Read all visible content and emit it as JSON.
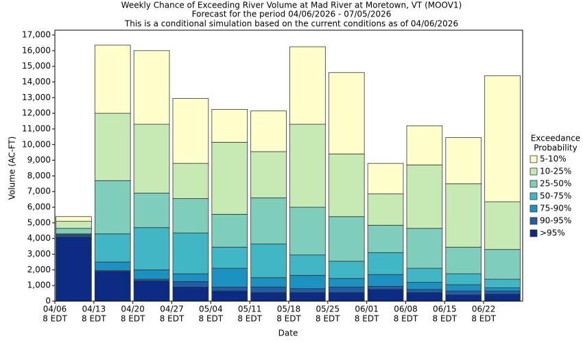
{
  "chart_data": {
    "type": "stacked_bar",
    "title": "Weekly Chance of Exceeding River Volume at Mad River at Moretown, VT (MOOV1)",
    "subtitle": "Forecast for the period 04/06/2026 - 07/05/2026",
    "note": "This is a conditional simulation based on the current conditions as of 04/06/2026",
    "x_label": "Date",
    "y_label": "Volume (AC-FT)",
    "legend_title": [
      "Exceedance",
      "Probability"
    ],
    "legend": "right",
    "categories": [
      [
        "04/06",
        "8 EDT"
      ],
      [
        "04/13",
        "8 EDT"
      ],
      [
        "04/20",
        "8 EDT"
      ],
      [
        "04/27",
        "8 EDT"
      ],
      [
        "05/04",
        "8 EDT"
      ],
      [
        "05/11",
        "8 EDT"
      ],
      [
        "05/18",
        "8 EDT"
      ],
      [
        "05/25",
        "8 EDT"
      ],
      [
        "06/01",
        "8 EDT"
      ],
      [
        "06/08",
        "8 EDT"
      ],
      [
        "06/15",
        "8 EDT"
      ],
      [
        "06/22",
        "8 EDT"
      ]
    ],
    "series": [
      {
        "name": ">95%",
        "color": "#0c2c84",
        "values": [
          4100,
          1900,
          1300,
          900,
          650,
          550,
          550,
          550,
          750,
          550,
          400,
          450
        ]
      },
      {
        "name": "90-95%",
        "color": "#225ea8",
        "values": [
          100,
          50,
          100,
          350,
          250,
          350,
          250,
          350,
          200,
          200,
          250,
          200
        ]
      },
      {
        "name": "75-90%",
        "color": "#1d91c0",
        "values": [
          50,
          550,
          600,
          500,
          1200,
          600,
          850,
          550,
          750,
          450,
          400,
          200
        ]
      },
      {
        "name": "50-75%",
        "color": "#41b6c4",
        "values": [
          50,
          1800,
          2700,
          2600,
          1350,
          2150,
          1300,
          1100,
          1400,
          900,
          700,
          550
        ]
      },
      {
        "name": "25-50%",
        "color": "#7fcdbb",
        "values": [
          350,
          3400,
          2200,
          2200,
          2100,
          2950,
          3050,
          2850,
          1750,
          2550,
          1700,
          1900
        ]
      },
      {
        "name": "10-25%",
        "color": "#c7e9b4",
        "values": [
          450,
          4300,
          4400,
          2250,
          4600,
          2950,
          5300,
          4000,
          2000,
          4050,
          4050,
          3050
        ]
      },
      {
        "name": "5-10%",
        "color": "#ffffcc",
        "values": [
          300,
          4350,
          4700,
          4150,
          2100,
          2600,
          4950,
          5200,
          1950,
          2500,
          2950,
          8050
        ]
      }
    ],
    "ylim": [
      0,
      17000
    ],
    "yticks": [
      0,
      {
        "value": 1000,
        "label": "1,000"
      },
      {
        "value": 2000,
        "label": "2,000"
      },
      {
        "value": 3000,
        "label": "3,000"
      },
      {
        "value": 4000,
        "label": "4,000"
      },
      {
        "value": 5000,
        "label": "5,000"
      },
      {
        "value": 6000,
        "label": "6,000"
      },
      {
        "value": 7000,
        "label": "7,000"
      },
      {
        "value": 8000,
        "label": "8,000"
      },
      {
        "value": 9000,
        "label": "9,000"
      },
      {
        "value": 10000,
        "label": "10,000"
      },
      {
        "value": 11000,
        "label": "11,000"
      },
      {
        "value": 12000,
        "label": "12,000"
      },
      {
        "value": 13000,
        "label": "13,000"
      },
      {
        "value": 14000,
        "label": "14,000"
      },
      {
        "value": 15000,
        "label": "15,000"
      },
      {
        "value": 16000,
        "label": "16,000"
      },
      {
        "value": 17000,
        "label": "17,000"
      }
    ]
  }
}
